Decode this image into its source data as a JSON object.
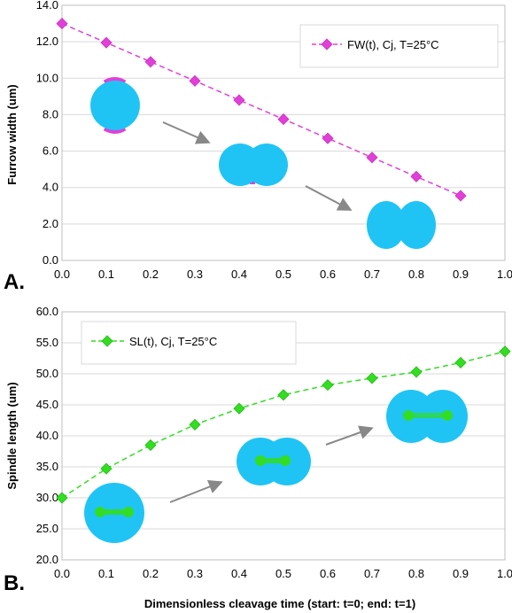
{
  "figure": {
    "panel_labels": [
      "A.",
      "B."
    ],
    "shared_xlabel": "Dimensionless cleavage time (start: t=0; end: t=1)"
  },
  "colors": {
    "series_a": "#e040d8",
    "series_b": "#33dd22",
    "cell": "#1fc4f4",
    "spindle": "#33dd22",
    "furrow_pink": "#e040d8",
    "arrow": "#888888",
    "grid": "#d9d9d9"
  },
  "icons": [
    "cell-sphere-icon",
    "cell-cleaving-icon",
    "cell-divided-icon",
    "arrow-icon"
  ],
  "chart_data": [
    {
      "type": "line",
      "panel": "A.",
      "ylabel": "Furrow width (um)",
      "xlabel": "",
      "xlim": [
        0.0,
        1.0
      ],
      "ylim": [
        0.0,
        14.0
      ],
      "xticks": [
        "0.0",
        "0.1",
        "0.2",
        "0.3",
        "0.4",
        "0.5",
        "0.6",
        "0.7",
        "0.8",
        "0.9",
        "1.0"
      ],
      "yticks": [
        "0.0",
        "2.0",
        "4.0",
        "6.0",
        "8.0",
        "10.0",
        "12.0",
        "14.0"
      ],
      "grid": "horizontal",
      "legend_position": "top-right",
      "series": [
        {
          "name": "FW(t), Cj, T=25°C",
          "marker": "diamond",
          "line": "dashed",
          "x": [
            0.0,
            0.1,
            0.2,
            0.3,
            0.4,
            0.5,
            0.6,
            0.7,
            0.8,
            0.9
          ],
          "y": [
            13.0,
            11.95,
            10.9,
            9.85,
            8.8,
            7.75,
            6.7,
            5.65,
            4.6,
            3.55
          ]
        }
      ]
    },
    {
      "type": "line",
      "panel": "B.",
      "ylabel": "Spindle length (um)",
      "xlabel": "Dimensionless cleavage time (start: t=0; end: t=1)",
      "xlim": [
        0.0,
        1.0
      ],
      "ylim": [
        20.0,
        60.0
      ],
      "xticks": [
        "0.0",
        "0.1",
        "0.2",
        "0.3",
        "0.4",
        "0.5",
        "0.6",
        "0.7",
        "0.8",
        "0.9",
        "1.0"
      ],
      "yticks": [
        "20.0",
        "25.0",
        "30.0",
        "35.0",
        "40.0",
        "45.0",
        "50.0",
        "55.0",
        "60.0"
      ],
      "grid": "horizontal",
      "legend_position": "top-left",
      "series": [
        {
          "name": "SL(t), Cj, T=25°C",
          "marker": "diamond",
          "line": "dashed",
          "x": [
            0.0,
            0.1,
            0.2,
            0.3,
            0.4,
            0.5,
            0.6,
            0.7,
            0.8,
            0.9,
            1.0
          ],
          "y": [
            30.0,
            34.7,
            38.5,
            41.8,
            44.4,
            46.6,
            48.2,
            49.3,
            50.3,
            51.8,
            53.6
          ]
        }
      ]
    }
  ]
}
